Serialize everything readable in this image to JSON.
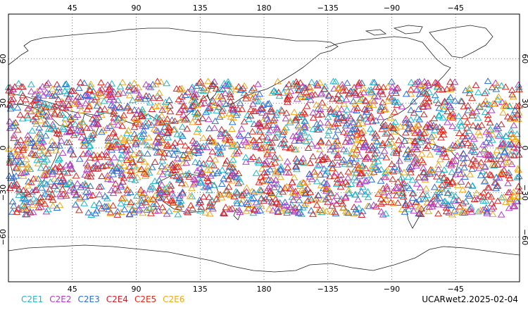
{
  "map": {
    "title": "UCARwet2.2025-02-04",
    "x_ticks": [
      "45",
      "90",
      "135",
      "180",
      "−135",
      "−90",
      "−45"
    ],
    "y_ticks": [
      "60",
      "30",
      "0",
      "−30",
      "−60"
    ],
    "longitude_range": [
      0,
      360
    ],
    "latitude_range": [
      -90,
      90
    ],
    "observation_latitude_band": [
      -45,
      45
    ],
    "marker": "triangle-outline",
    "grid": "dotted",
    "coastlines": true
  },
  "legend": [
    {
      "label": "C2E1",
      "color": "#1fb8c8"
    },
    {
      "label": "C2E2",
      "color": "#b43cc8"
    },
    {
      "label": "C2E3",
      "color": "#2b6fd6"
    },
    {
      "label": "C2E4",
      "color": "#d0202c"
    },
    {
      "label": "C2E5",
      "color": "#e02818"
    },
    {
      "label": "C2E6",
      "color": "#f0a818"
    }
  ]
}
